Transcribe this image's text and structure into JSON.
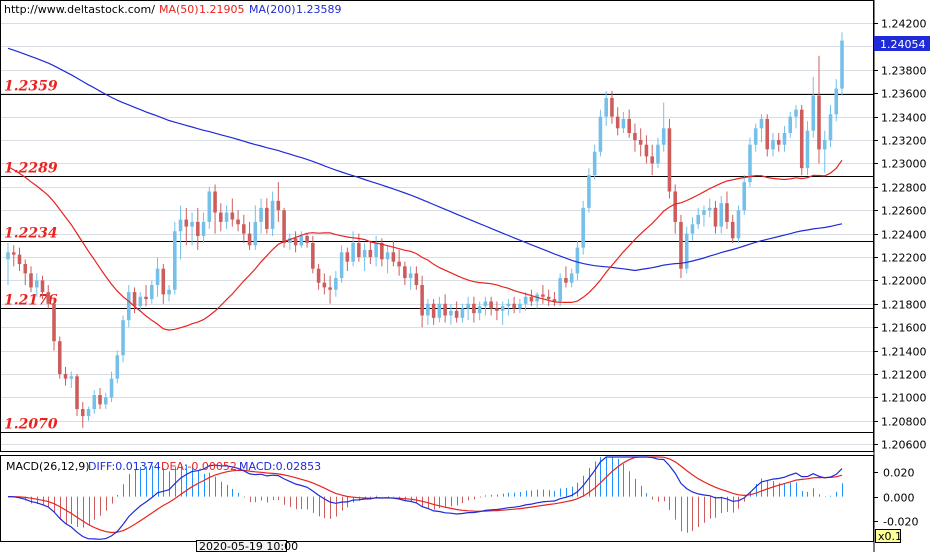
{
  "header": {
    "site": "http://www.deltastock.com/",
    "ma50_label": "MA(50)",
    "ma50_value": "1.21905",
    "ma200_label": "MA(200)",
    "ma200_value": "1.23589"
  },
  "colors": {
    "bull": "#74c0ea",
    "bear": "#cd5c5c",
    "ma50": "#e8231f",
    "ma200": "#1f2bd8",
    "level_text": "#e8231f",
    "diff": "#1f2bd8",
    "dea": "#e8231f",
    "hist": "#1e90ff",
    "hist_neg": "#cd5c5c",
    "grid": "#d9dde4"
  },
  "price_axis": {
    "ticks": [
      "1.24200",
      "1.24000",
      "1.23800",
      "1.23600",
      "1.23400",
      "1.23200",
      "1.23000",
      "1.22800",
      "1.22600",
      "1.22400",
      "1.22200",
      "1.22000",
      "1.21800",
      "1.21600",
      "1.21400",
      "1.21200",
      "1.21000",
      "1.20800",
      "1.20600"
    ],
    "last_price": "1.24054",
    "ylim": [
      1.2055,
      1.2438
    ]
  },
  "levels": [
    {
      "value": 1.2359,
      "label": "1.2359"
    },
    {
      "value": 1.2289,
      "label": "1.2289"
    },
    {
      "value": 1.2234,
      "label": "1.2234"
    },
    {
      "value": 1.2176,
      "label": "1.2176"
    },
    {
      "value": 1.207,
      "label": "1.2070"
    }
  ],
  "macd": {
    "title": "MACD(26,12,9)",
    "diff_label": "DIFF:0.01374",
    "dea_label": "DEA:-0.00052",
    "macd_label": "MACD:0.02853",
    "ticks": [
      "0.020",
      "0.000",
      "-0.020"
    ],
    "ylim": [
      -0.035,
      0.032
    ]
  },
  "time_label": "2020-05-19 10:00",
  "corner_label": "x0.1",
  "chart_data": {
    "type": "candlestick",
    "ohlc": [
      [
        1.2218,
        1.2232,
        1.2196,
        1.2224
      ],
      [
        1.2224,
        1.223,
        1.2212,
        1.2222
      ],
      [
        1.2222,
        1.2228,
        1.2208,
        1.2214
      ],
      [
        1.2214,
        1.2218,
        1.2196,
        1.2206
      ],
      [
        1.2206,
        1.2212,
        1.219,
        1.2194
      ],
      [
        1.2194,
        1.2206,
        1.2186,
        1.22
      ],
      [
        1.22,
        1.2204,
        1.2184,
        1.219
      ],
      [
        1.219,
        1.2196,
        1.2176,
        1.218
      ],
      [
        1.218,
        1.2184,
        1.214,
        1.2148
      ],
      [
        1.2148,
        1.2152,
        1.2116,
        1.212
      ],
      [
        1.212,
        1.2126,
        1.211,
        1.2116
      ],
      [
        1.2116,
        1.2122,
        1.2108,
        1.2118
      ],
      [
        1.2118,
        1.212,
        1.2084,
        1.209
      ],
      [
        1.209,
        1.2096,
        1.2074,
        1.2084
      ],
      [
        1.2084,
        1.2092,
        1.208,
        1.209
      ],
      [
        1.209,
        1.2106,
        1.2086,
        1.2102
      ],
      [
        1.2102,
        1.2108,
        1.209,
        1.2094
      ],
      [
        1.2094,
        1.2104,
        1.209,
        1.21
      ],
      [
        1.21,
        1.2122,
        1.2096,
        1.2116
      ],
      [
        1.2116,
        1.214,
        1.2112,
        1.2136
      ],
      [
        1.2136,
        1.217,
        1.213,
        1.2166
      ],
      [
        1.2166,
        1.2196,
        1.216,
        1.219
      ],
      [
        1.219,
        1.2194,
        1.2172,
        1.2178
      ],
      [
        1.2178,
        1.219,
        1.2174,
        1.2186
      ],
      [
        1.2186,
        1.2196,
        1.2178,
        1.2184
      ],
      [
        1.2184,
        1.22,
        1.218,
        1.2196
      ],
      [
        1.2196,
        1.222,
        1.2186,
        1.221
      ],
      [
        1.221,
        1.2214,
        1.218,
        1.2188
      ],
      [
        1.2188,
        1.2196,
        1.2182,
        1.2192
      ],
      [
        1.2192,
        1.225,
        1.2188,
        1.2242
      ],
      [
        1.2242,
        1.2264,
        1.2218,
        1.2252
      ],
      [
        1.2252,
        1.2262,
        1.223,
        1.2246
      ],
      [
        1.2246,
        1.2258,
        1.223,
        1.225
      ],
      [
        1.225,
        1.2262,
        1.2226,
        1.2238
      ],
      [
        1.2238,
        1.2258,
        1.2232,
        1.225
      ],
      [
        1.225,
        1.228,
        1.2244,
        1.2276
      ],
      [
        1.2276,
        1.2282,
        1.224,
        1.2258
      ],
      [
        1.2258,
        1.2266,
        1.2242,
        1.225
      ],
      [
        1.225,
        1.2264,
        1.2244,
        1.2258
      ],
      [
        1.2258,
        1.227,
        1.2246,
        1.2252
      ],
      [
        1.2252,
        1.226,
        1.2242,
        1.2248
      ],
      [
        1.2248,
        1.2256,
        1.2232,
        1.224
      ],
      [
        1.224,
        1.225,
        1.2226,
        1.223
      ],
      [
        1.223,
        1.2264,
        1.2226,
        1.225
      ],
      [
        1.225,
        1.227,
        1.224,
        1.2262
      ],
      [
        1.2262,
        1.227,
        1.224,
        1.2244
      ],
      [
        1.2244,
        1.2276,
        1.2238,
        1.2268
      ],
      [
        1.2268,
        1.2284,
        1.225,
        1.226
      ],
      [
        1.226,
        1.2262,
        1.2228,
        1.2232
      ],
      [
        1.2232,
        1.224,
        1.2226,
        1.2236
      ],
      [
        1.2236,
        1.2242,
        1.2224,
        1.223
      ],
      [
        1.223,
        1.2242,
        1.2228,
        1.2238
      ],
      [
        1.2238,
        1.224,
        1.2228,
        1.2232
      ],
      [
        1.2232,
        1.2238,
        1.2206,
        1.221
      ],
      [
        1.221,
        1.2214,
        1.2192,
        1.2198
      ],
      [
        1.2198,
        1.2206,
        1.2188,
        1.2194
      ],
      [
        1.2194,
        1.2204,
        1.218,
        1.2192
      ],
      [
        1.2192,
        1.2208,
        1.2186,
        1.2202
      ],
      [
        1.2202,
        1.223,
        1.2198,
        1.2224
      ],
      [
        1.2224,
        1.2228,
        1.2208,
        1.2216
      ],
      [
        1.2216,
        1.2242,
        1.2212,
        1.2232
      ],
      [
        1.2232,
        1.224,
        1.2216,
        1.222
      ],
      [
        1.222,
        1.2232,
        1.2208,
        1.2226
      ],
      [
        1.2226,
        1.2234,
        1.2214,
        1.222
      ],
      [
        1.222,
        1.2238,
        1.2212,
        1.2232
      ],
      [
        1.2232,
        1.2236,
        1.2212,
        1.2218
      ],
      [
        1.2218,
        1.223,
        1.2206,
        1.2224
      ],
      [
        1.2224,
        1.2234,
        1.2212,
        1.2216
      ],
      [
        1.2216,
        1.2226,
        1.2204,
        1.2212
      ],
      [
        1.2212,
        1.2216,
        1.2196,
        1.2202
      ],
      [
        1.2202,
        1.2212,
        1.2192,
        1.2206
      ],
      [
        1.2206,
        1.2212,
        1.2192,
        1.2196
      ],
      [
        1.2196,
        1.2204,
        1.216,
        1.217
      ],
      [
        1.217,
        1.2184,
        1.2162,
        1.218
      ],
      [
        1.218,
        1.2184,
        1.2162,
        1.2168
      ],
      [
        1.2168,
        1.2186,
        1.2164,
        1.218
      ],
      [
        1.218,
        1.2188,
        1.2164,
        1.217
      ],
      [
        1.217,
        1.218,
        1.2162,
        1.2174
      ],
      [
        1.2174,
        1.2182,
        1.2164,
        1.2168
      ],
      [
        1.2168,
        1.218,
        1.2164,
        1.2176
      ],
      [
        1.2176,
        1.2186,
        1.2166,
        1.218
      ],
      [
        1.218,
        1.2186,
        1.2164,
        1.2172
      ],
      [
        1.2172,
        1.2182,
        1.2166,
        1.2178
      ],
      [
        1.2178,
        1.2186,
        1.217,
        1.2182
      ],
      [
        1.2182,
        1.2186,
        1.217,
        1.2176
      ],
      [
        1.2176,
        1.2182,
        1.2166,
        1.2174
      ],
      [
        1.2174,
        1.2182,
        1.2162,
        1.2178
      ],
      [
        1.2178,
        1.2184,
        1.217,
        1.218
      ],
      [
        1.218,
        1.2186,
        1.2172,
        1.2176
      ],
      [
        1.2176,
        1.2184,
        1.2172,
        1.218
      ],
      [
        1.218,
        1.219,
        1.2174,
        1.2186
      ],
      [
        1.2186,
        1.2192,
        1.2178,
        1.2182
      ],
      [
        1.2182,
        1.219,
        1.2176,
        1.2188
      ],
      [
        1.2188,
        1.2196,
        1.218,
        1.2186
      ],
      [
        1.2186,
        1.2192,
        1.2178,
        1.2184
      ],
      [
        1.2184,
        1.219,
        1.2178,
        1.2182
      ],
      [
        1.2182,
        1.2206,
        1.2178,
        1.2202
      ],
      [
        1.2202,
        1.2212,
        1.2194,
        1.2198
      ],
      [
        1.2198,
        1.221,
        1.2194,
        1.2206
      ],
      [
        1.2206,
        1.2234,
        1.22,
        1.2228
      ],
      [
        1.2228,
        1.2268,
        1.2222,
        1.2262
      ],
      [
        1.2262,
        1.2296,
        1.2258,
        1.229
      ],
      [
        1.229,
        1.2316,
        1.2286,
        1.231
      ],
      [
        1.231,
        1.2346,
        1.2306,
        1.234
      ],
      [
        1.234,
        1.2362,
        1.2332,
        1.2356
      ],
      [
        1.2356,
        1.2362,
        1.2334,
        1.234
      ],
      [
        1.234,
        1.2348,
        1.2324,
        1.233
      ],
      [
        1.233,
        1.2344,
        1.2326,
        1.2338
      ],
      [
        1.2338,
        1.2346,
        1.2322,
        1.2326
      ],
      [
        1.2326,
        1.2334,
        1.231,
        1.232
      ],
      [
        1.232,
        1.233,
        1.2306,
        1.2316
      ],
      [
        1.2316,
        1.2324,
        1.23,
        1.2306
      ],
      [
        1.2306,
        1.2316,
        1.229,
        1.23
      ],
      [
        1.23,
        1.2322,
        1.2296,
        1.2316
      ],
      [
        1.2316,
        1.2352,
        1.231,
        1.233
      ],
      [
        1.233,
        1.2338,
        1.227,
        1.2276
      ],
      [
        1.2276,
        1.2282,
        1.224,
        1.225
      ],
      [
        1.225,
        1.2256,
        1.2202,
        1.221
      ],
      [
        1.221,
        1.2246,
        1.2206,
        1.224
      ],
      [
        1.224,
        1.2254,
        1.2234,
        1.2248
      ],
      [
        1.2248,
        1.2262,
        1.2244,
        1.2256
      ],
      [
        1.2256,
        1.2264,
        1.2246,
        1.226
      ],
      [
        1.226,
        1.227,
        1.2254,
        1.2262
      ],
      [
        1.2262,
        1.2268,
        1.224,
        1.2246
      ],
      [
        1.2246,
        1.2272,
        1.224,
        1.2266
      ],
      [
        1.2266,
        1.2276,
        1.2244,
        1.225
      ],
      [
        1.225,
        1.2256,
        1.2232,
        1.2236
      ],
      [
        1.2236,
        1.2264,
        1.2232,
        1.226
      ],
      [
        1.226,
        1.229,
        1.2256,
        1.2284
      ],
      [
        1.2284,
        1.2322,
        1.228,
        1.2316
      ],
      [
        1.2316,
        1.2334,
        1.231,
        1.233
      ],
      [
        1.233,
        1.2342,
        1.2318,
        1.2338
      ],
      [
        1.2338,
        1.2342,
        1.2306,
        1.2312
      ],
      [
        1.2312,
        1.2326,
        1.2306,
        1.232
      ],
      [
        1.232,
        1.2326,
        1.231,
        1.2316
      ],
      [
        1.2316,
        1.2332,
        1.231,
        1.2326
      ],
      [
        1.2326,
        1.2344,
        1.2322,
        1.234
      ],
      [
        1.234,
        1.235,
        1.233,
        1.2346
      ],
      [
        1.2346,
        1.235,
        1.229,
        1.2296
      ],
      [
        1.2296,
        1.2336,
        1.229,
        1.2328
      ],
      [
        1.2328,
        1.2374,
        1.2322,
        1.2358
      ],
      [
        1.2358,
        1.2392,
        1.23,
        1.2312
      ],
      [
        1.2312,
        1.2328,
        1.2292,
        1.232
      ],
      [
        1.232,
        1.235,
        1.2314,
        1.2342
      ],
      [
        1.2342,
        1.2372,
        1.2336,
        1.2364
      ],
      [
        1.2364,
        1.2412,
        1.2358,
        1.2405
      ]
    ],
    "ma50_value": 1.21905,
    "ma200_value": 1.23589,
    "macd_diff_value": 0.01374,
    "macd_dea_value": -0.00052,
    "macd_value": 0.02853
  }
}
